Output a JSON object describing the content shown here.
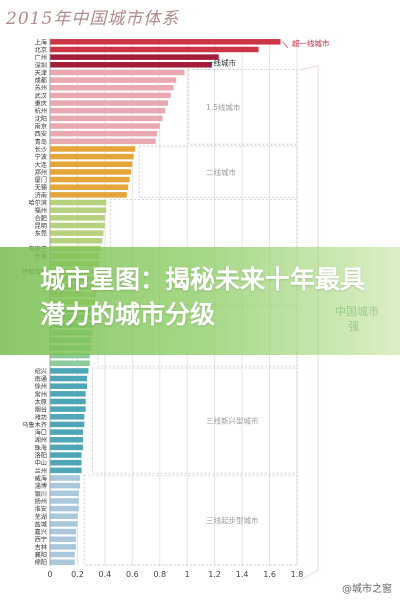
{
  "headline": "城市星图：揭秘未来十年最具潜力的城市分级",
  "watermark": "@城市之窗",
  "chart_data": {
    "type": "bar",
    "orientation": "horizontal",
    "title": "2015年中国城市体系",
    "xlim": [
      0,
      1.8
    ],
    "xticks": [
      "0",
      "0.2",
      "0.4",
      "0.6",
      "0.8",
      "1",
      "1.2",
      "1.4",
      "1.6",
      "1.8"
    ],
    "categories": [
      "上海",
      "北京",
      "广州",
      "深圳",
      "天津",
      "成都",
      "苏州",
      "武汉",
      "重庆",
      "杭州",
      "沈阳",
      "南京",
      "西安",
      "青岛",
      "长沙",
      "宁波",
      "大连",
      "郑州",
      "厦门",
      "无锡",
      "济南",
      "哈尔滨",
      "福州",
      "合肥",
      "昆明",
      "东莞",
      "",
      "石家庄",
      "长春",
      "",
      "呼和浩特",
      "",
      "",
      "",
      "",
      "",
      "",
      "",
      "",
      "",
      "",
      "",
      "",
      "绍兴",
      "南通",
      "徐州",
      "常州",
      "太原",
      "烟台",
      "潍坊",
      "乌鲁木齐",
      "海口",
      "湖州",
      "珠海",
      "洛阳",
      "中山",
      "兰州",
      "威海",
      "淄博",
      "银川",
      "扬州",
      "淮安",
      "芜湖",
      "盐城",
      "嘉兴",
      "西宁",
      "吉林",
      "襄阳",
      "绵阳"
    ],
    "values": [
      1.68,
      1.52,
      1.23,
      1.18,
      0.98,
      0.92,
      0.9,
      0.88,
      0.86,
      0.84,
      0.82,
      0.8,
      0.78,
      0.77,
      0.62,
      0.61,
      0.6,
      0.59,
      0.58,
      0.57,
      0.56,
      0.41,
      0.41,
      0.4,
      0.4,
      0.39,
      0.38,
      0.37,
      0.36,
      0.36,
      0.35,
      0.35,
      0.34,
      0.34,
      0.33,
      0.32,
      0.32,
      0.31,
      0.31,
      0.3,
      0.3,
      0.29,
      0.29,
      0.28,
      0.27,
      0.27,
      0.26,
      0.26,
      0.26,
      0.25,
      0.25,
      0.24,
      0.24,
      0.24,
      0.23,
      0.23,
      0.23,
      0.22,
      0.22,
      0.21,
      0.21,
      0.21,
      0.2,
      0.2,
      0.19,
      0.19,
      0.19,
      0.18,
      0.18
    ],
    "tiers": [
      {
        "name": "超一线城市",
        "start": 0,
        "count": 2,
        "color": "#cc3545"
      },
      {
        "name": "一线城市",
        "start": 2,
        "count": 2,
        "color": "#a31d3a"
      },
      {
        "name": "1.5线城市",
        "start": 4,
        "count": 10,
        "color": "#e9a9b3"
      },
      {
        "name": "二线城市",
        "start": 14,
        "count": 7,
        "color": "#e6a53a"
      },
      {
        "name": "",
        "start": 21,
        "count": 14,
        "color": "#b6d27e"
      },
      {
        "name": "",
        "start": 35,
        "count": 8,
        "color": "#8ecb9a"
      },
      {
        "name": "三线新兴型城市",
        "start": 43,
        "count": 14,
        "color": "#4fa6b8"
      },
      {
        "name": "三线起步型城市",
        "start": 57,
        "count": 12,
        "color": "#a9c8dc"
      }
    ],
    "side_label": "中国城市",
    "side_label_2": "强",
    "grid": true
  }
}
